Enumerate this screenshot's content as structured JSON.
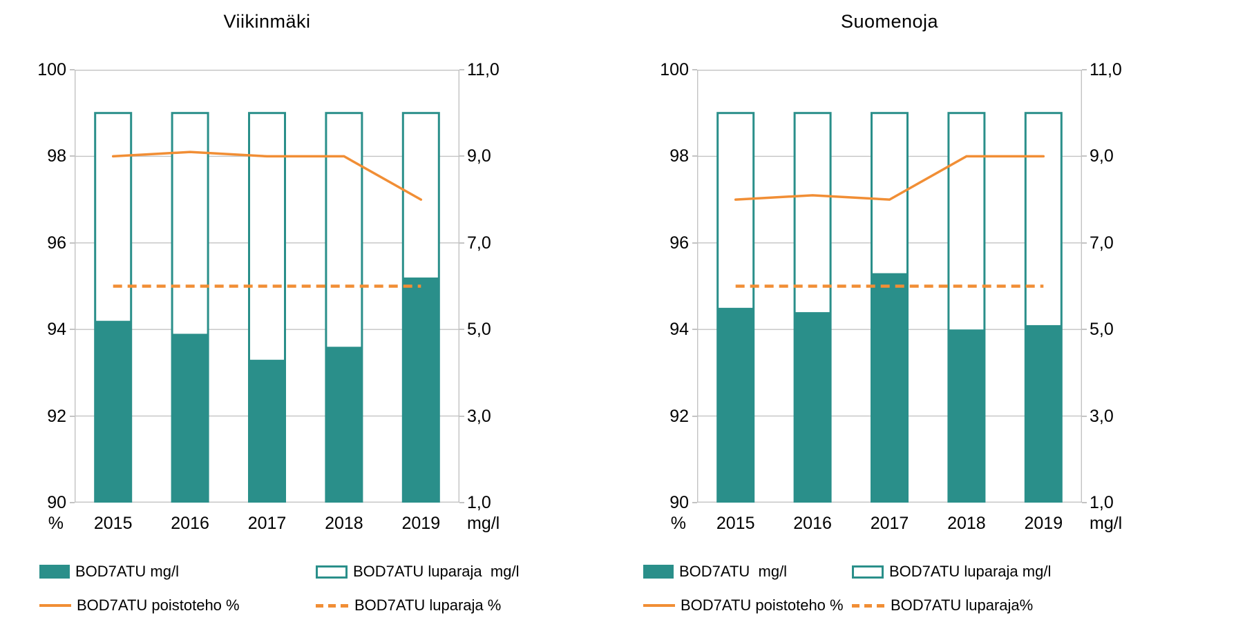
{
  "page": {
    "background": "#ffffff"
  },
  "colors": {
    "teal": "#2A8F8A",
    "orange": "#F18E35",
    "grid": "#C3C3C3",
    "text": "#000000"
  },
  "chart_data": [
    {
      "type": "bar",
      "title": "Viikinmäki",
      "categories": [
        "2015",
        "2016",
        "2017",
        "2018",
        "2019"
      ],
      "left_axis": {
        "unit": "%",
        "min": 90,
        "max": 100,
        "tick_values": [
          100,
          98,
          96,
          94,
          92,
          90
        ],
        "tick_labels": [
          "100",
          "98",
          "96",
          "94",
          "92",
          "90"
        ]
      },
      "right_axis": {
        "unit": "mg/l",
        "min": 1,
        "max": 11,
        "tick_values": [
          11,
          9,
          7,
          5,
          3,
          1
        ],
        "tick_labels": [
          "11,0",
          "9,0",
          "7,0",
          "5,0",
          "3,0",
          "1,0"
        ]
      },
      "grid": true,
      "legend_position": "bottom",
      "series": [
        {
          "name": "BOD7ATU mg/l",
          "type": "bar",
          "axis": "right",
          "values": [
            5.2,
            4.9,
            4.3,
            4.6,
            6.2
          ]
        },
        {
          "name": "BOD7ATU luparaja  mg/l",
          "type": "bar-outline",
          "axis": "right",
          "values": [
            10,
            10,
            10,
            10,
            10
          ]
        },
        {
          "name": "BOD7ATU poistoteho %",
          "type": "line",
          "axis": "left",
          "values": [
            98.0,
            98.1,
            98.0,
            98.0,
            97.0
          ]
        },
        {
          "name": "BOD7ATU luparaja %",
          "type": "line-dashed",
          "axis": "left",
          "values": [
            95,
            95,
            95,
            95,
            95
          ]
        }
      ]
    },
    {
      "type": "bar",
      "title": "Suomenoja",
      "categories": [
        "2015",
        "2016",
        "2017",
        "2018",
        "2019"
      ],
      "left_axis": {
        "unit": "%",
        "min": 90,
        "max": 100,
        "tick_values": [
          100,
          98,
          96,
          94,
          92,
          90
        ],
        "tick_labels": [
          "100",
          "98",
          "96",
          "94",
          "92",
          "90"
        ]
      },
      "right_axis": {
        "unit": "mg/l",
        "min": 1,
        "max": 11,
        "tick_values": [
          11,
          9,
          7,
          5,
          3,
          1
        ],
        "tick_labels": [
          "11,0",
          "9,0",
          "7,0",
          "5,0",
          "3,0",
          "1,0"
        ]
      },
      "grid": true,
      "legend_position": "bottom",
      "series": [
        {
          "name": "BOD7ATU  mg/l",
          "type": "bar",
          "axis": "right",
          "values": [
            5.5,
            5.4,
            6.3,
            5.0,
            5.1
          ]
        },
        {
          "name": "BOD7ATU luparaja mg/l",
          "type": "bar-outline",
          "axis": "right",
          "values": [
            10,
            10,
            10,
            10,
            10
          ]
        },
        {
          "name": "BOD7ATU poistoteho %",
          "type": "line",
          "axis": "left",
          "values": [
            97.0,
            97.1,
            97.0,
            98.0,
            98.0
          ]
        },
        {
          "name": "BOD7ATU luparaja%",
          "type": "line-dashed",
          "axis": "left",
          "values": [
            95,
            95,
            95,
            95,
            95
          ]
        }
      ]
    }
  ]
}
